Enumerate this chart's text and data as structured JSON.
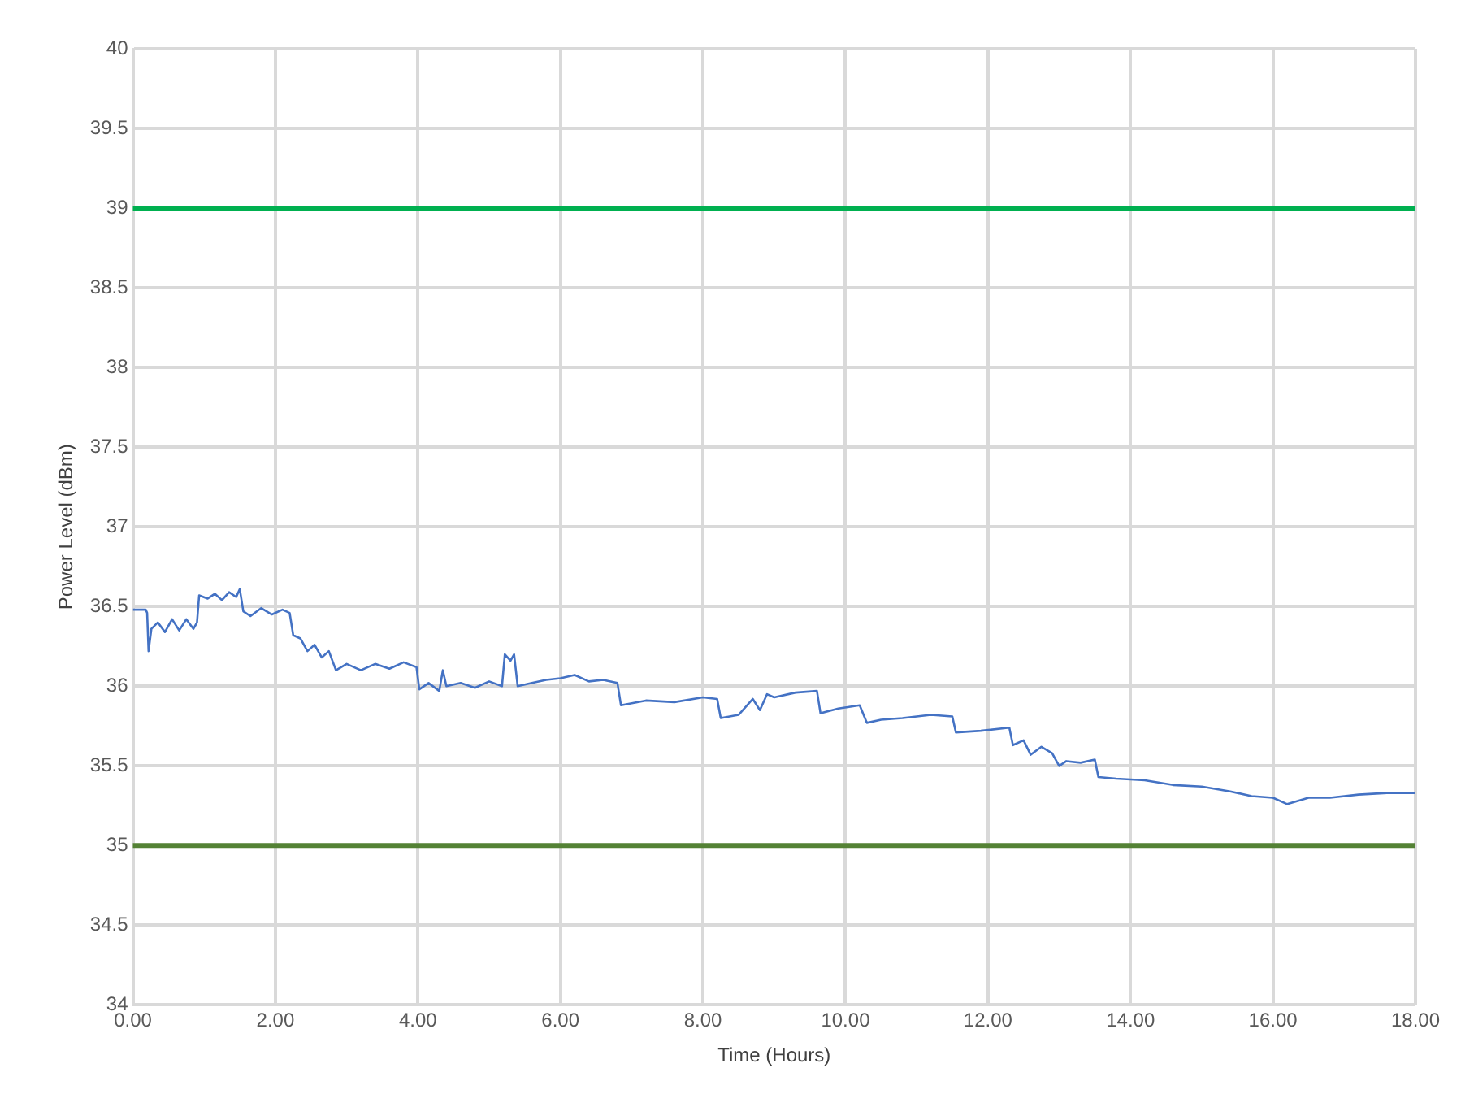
{
  "chart_data": {
    "type": "line",
    "xlabel": "Time (Hours)",
    "ylabel": "Power Level (dBm)",
    "x": [
      0,
      0.18,
      0.2,
      0.22,
      0.26,
      0.35,
      0.45,
      0.55,
      0.65,
      0.75,
      0.85,
      0.9,
      0.93,
      1.05,
      1.15,
      1.25,
      1.35,
      1.45,
      1.5,
      1.55,
      1.65,
      1.8,
      1.95,
      2.1,
      2.2,
      2.25,
      2.35,
      2.45,
      2.55,
      2.65,
      2.75,
      2.85,
      3.0,
      3.2,
      3.4,
      3.6,
      3.8,
      3.98,
      4.02,
      4.15,
      4.3,
      4.35,
      4.4,
      4.6,
      4.8,
      5.0,
      5.18,
      5.22,
      5.3,
      5.35,
      5.4,
      5.6,
      5.8,
      6.0,
      6.2,
      6.4,
      6.6,
      6.8,
      6.85,
      7.2,
      7.6,
      8.0,
      8.2,
      8.25,
      8.5,
      8.7,
      8.8,
      8.9,
      9.0,
      9.3,
      9.6,
      9.65,
      9.9,
      10.2,
      10.3,
      10.5,
      10.8,
      11.2,
      11.5,
      11.55,
      11.9,
      12.3,
      12.35,
      12.5,
      12.6,
      12.75,
      12.9,
      13.0,
      13.1,
      13.3,
      13.5,
      13.55,
      13.8,
      14.2,
      14.6,
      15.0,
      15.4,
      15.7,
      16.0,
      16.2,
      16.5,
      16.8,
      17.2,
      17.6,
      18.0
    ],
    "series": [
      {
        "color": "#4472c4",
        "values": [
          36.48,
          36.48,
          36.46,
          36.22,
          36.36,
          36.4,
          36.34,
          36.42,
          36.35,
          36.42,
          36.36,
          36.4,
          36.57,
          36.55,
          36.58,
          36.54,
          36.59,
          36.56,
          36.61,
          36.47,
          36.44,
          36.49,
          36.45,
          36.48,
          36.46,
          36.32,
          36.3,
          36.22,
          36.26,
          36.18,
          36.22,
          36.1,
          36.14,
          36.1,
          36.14,
          36.11,
          36.15,
          36.12,
          35.98,
          36.02,
          35.97,
          36.1,
          36.0,
          36.02,
          35.99,
          36.03,
          36.0,
          36.2,
          36.16,
          36.2,
          36.0,
          36.02,
          36.04,
          36.05,
          36.07,
          36.03,
          36.04,
          36.02,
          35.88,
          35.91,
          35.9,
          35.93,
          35.92,
          35.8,
          35.82,
          35.92,
          35.85,
          35.95,
          35.93,
          35.96,
          35.97,
          35.83,
          35.86,
          35.88,
          35.77,
          35.79,
          35.8,
          35.82,
          35.81,
          35.71,
          35.72,
          35.74,
          35.63,
          35.66,
          35.57,
          35.62,
          35.58,
          35.5,
          35.53,
          35.52,
          35.54,
          35.43,
          35.42,
          35.41,
          35.38,
          35.37,
          35.34,
          35.31,
          35.3,
          35.26,
          35.3,
          35.3,
          35.32,
          35.33,
          35.33
        ]
      }
    ],
    "xlim": [
      0,
      18
    ],
    "xticks": [
      {
        "value": 0,
        "label": "0.00"
      },
      {
        "value": 2,
        "label": "2.00"
      },
      {
        "value": 4,
        "label": "4.00"
      },
      {
        "value": 6,
        "label": "6.00"
      },
      {
        "value": 8,
        "label": "8.00"
      },
      {
        "value": 10,
        "label": "10.00"
      },
      {
        "value": 12,
        "label": "12.00"
      },
      {
        "value": 14,
        "label": "14.00"
      },
      {
        "value": 16,
        "label": "16.00"
      },
      {
        "value": 18,
        "label": "18.00"
      }
    ],
    "ylim": [
      34,
      40
    ],
    "yticks": [
      34,
      34.5,
      35,
      35.5,
      36,
      36.5,
      37,
      37.5,
      38,
      38.5,
      39,
      39.5,
      40
    ],
    "ref_lines": [
      {
        "axis": "y",
        "value": 39,
        "color": "#00b050"
      },
      {
        "axis": "y",
        "value": 35,
        "color": "#548235"
      }
    ],
    "grid": true,
    "legend": false,
    "marker": "none",
    "line_style": "solid"
  }
}
